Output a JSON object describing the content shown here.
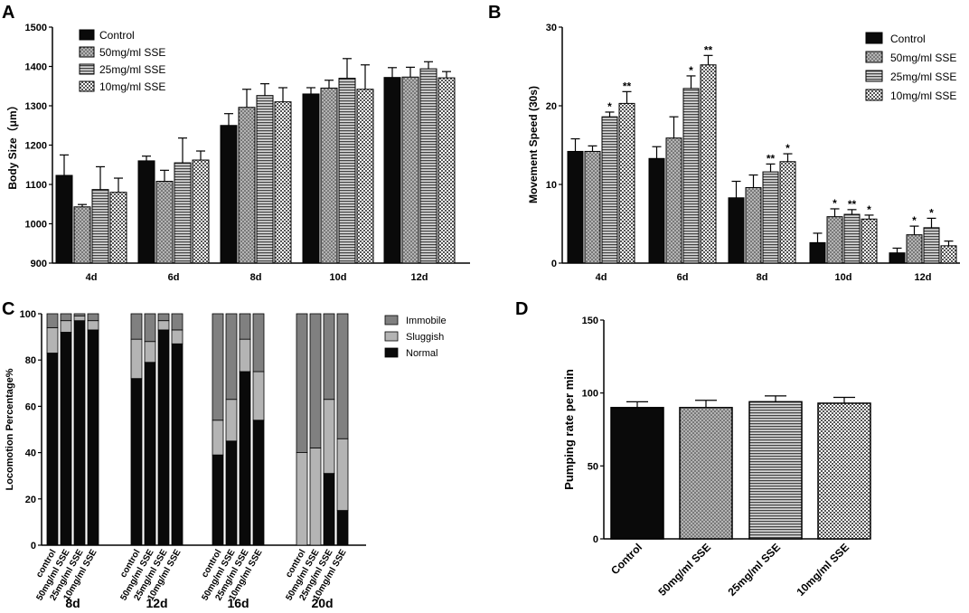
{
  "panels": [
    {
      "letter": "A"
    },
    {
      "letter": "B"
    },
    {
      "letter": "C"
    },
    {
      "letter": "D"
    }
  ],
  "chart_data": [
    {
      "panel": "A",
      "type": "bar",
      "ylabel": "Body Size（μm）",
      "ylim": [
        900,
        1500
      ],
      "yticks": [
        "900",
        "1000",
        "1100",
        "1200",
        "1300",
        "1400",
        "1500"
      ],
      "categories": [
        "4d",
        "6d",
        "8d",
        "10d",
        "12d"
      ],
      "series": [
        {
          "name": "Control",
          "values": [
            1123,
            1160,
            1250,
            1330,
            1372
          ],
          "errors": [
            52,
            12,
            30,
            16,
            25
          ]
        },
        {
          "name": "50mg/ml SSE",
          "values": [
            1043,
            1108,
            1296,
            1345,
            1373
          ],
          "errors": [
            6,
            28,
            46,
            20,
            25
          ]
        },
        {
          "name": "25mg/ml SSE",
          "values": [
            1087,
            1155,
            1326,
            1370,
            1394
          ],
          "errors": [
            58,
            63,
            30,
            50,
            18
          ]
        },
        {
          "name": "10mg/ml SSE",
          "values": [
            1080,
            1162,
            1310,
            1342,
            1371
          ],
          "errors": [
            36,
            23,
            36,
            62,
            16
          ]
        }
      ]
    },
    {
      "panel": "B",
      "type": "bar",
      "ylabel": "Movement Speed (30s)",
      "ylim": [
        0,
        30
      ],
      "yticks": [
        "0",
        "10",
        "20",
        "30"
      ],
      "categories": [
        "4d",
        "6d",
        "8d",
        "10d",
        "12d"
      ],
      "series": [
        {
          "name": "Control",
          "values": [
            14.2,
            13.3,
            8.3,
            2.6,
            1.3
          ],
          "errors": [
            1.6,
            1.5,
            2.1,
            1.2,
            0.6
          ],
          "sig": [
            "",
            "",
            "",
            "",
            ""
          ]
        },
        {
          "name": "50mg/ml SSE",
          "values": [
            14.2,
            15.9,
            9.6,
            5.9,
            3.6
          ],
          "errors": [
            0.7,
            2.7,
            1.6,
            1.0,
            1.1
          ],
          "sig": [
            "",
            "",
            "",
            "*",
            "*"
          ]
        },
        {
          "name": "25mg/ml SSE",
          "values": [
            18.6,
            22.2,
            11.6,
            6.2,
            4.5
          ],
          "errors": [
            0.6,
            1.6,
            1.0,
            0.6,
            1.2
          ],
          "sig": [
            "*",
            "*",
            "**",
            "**",
            "*"
          ]
        },
        {
          "name": "10mg/ml SSE",
          "values": [
            20.3,
            25.2,
            12.9,
            5.6,
            2.2
          ],
          "errors": [
            1.5,
            1.2,
            1.0,
            0.5,
            0.6
          ],
          "sig": [
            "**",
            "**",
            "*",
            "*",
            ""
          ]
        }
      ]
    },
    {
      "panel": "C",
      "type": "stacked-bar",
      "ylabel": "Locomotion Percentage%",
      "ylim": [
        0,
        100
      ],
      "yticks": [
        "0",
        "20",
        "40",
        "60",
        "80",
        "100"
      ],
      "groups": [
        "8d",
        "12d",
        "16d",
        "20d"
      ],
      "bar_labels": [
        "control",
        "50mg/ml SSE",
        "25mg/ml SSE",
        "10mg/ml SSE"
      ],
      "series": [
        {
          "name": "Normal",
          "values": [
            [
              83,
              92,
              97,
              93
            ],
            [
              72,
              79,
              93,
              87
            ],
            [
              39,
              45,
              75,
              54
            ],
            [
              0,
              0,
              31,
              15
            ]
          ]
        },
        {
          "name": "Sluggish",
          "values": [
            [
              11,
              5,
              2,
              4
            ],
            [
              17,
              9,
              4,
              6
            ],
            [
              15,
              18,
              14,
              21
            ],
            [
              40,
              42,
              32,
              31
            ]
          ]
        },
        {
          "name": "Immobile",
          "values": [
            [
              6,
              3,
              1,
              3
            ],
            [
              11,
              12,
              3,
              7
            ],
            [
              46,
              37,
              11,
              25
            ],
            [
              60,
              58,
              37,
              54
            ]
          ]
        }
      ]
    },
    {
      "panel": "D",
      "type": "bar",
      "ylabel": "Pumping rate per min",
      "ylim": [
        0,
        150
      ],
      "yticks": [
        "0",
        "50",
        "100",
        "150"
      ],
      "categories": [
        "Control",
        "50mg/ml SSE",
        "25mg/ml SSE",
        "10mg/ml SSE"
      ],
      "values": [
        90,
        90,
        94,
        93
      ],
      "errors": [
        4,
        5,
        4,
        4
      ]
    }
  ]
}
